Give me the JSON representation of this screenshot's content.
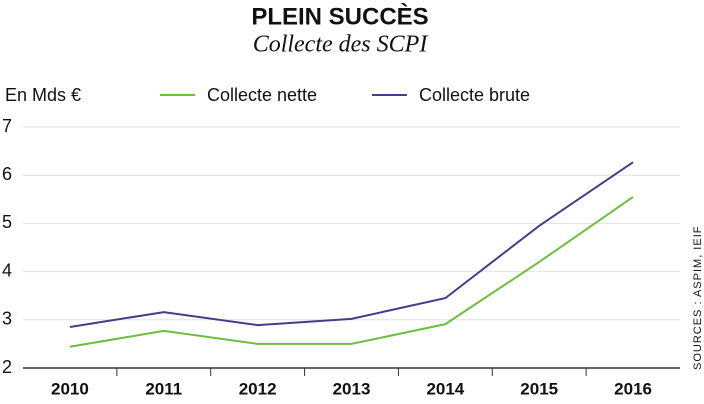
{
  "chart_data": {
    "type": "line",
    "title": "PLEIN SUCCÈS",
    "subtitle": "Collecte des SCPI",
    "y_label": "En Mds €",
    "source": "SOURCES : ASPIM, IEIF",
    "categories": [
      "2010",
      "2011",
      "2012",
      "2013",
      "2014",
      "2015",
      "2016"
    ],
    "series": [
      {
        "name": "Collecte nette",
        "color": "#6cbf3c",
        "values": [
          2.44,
          2.77,
          2.5,
          2.5,
          2.91,
          4.2,
          5.55
        ]
      },
      {
        "name": "Collecte brute",
        "color": "#4b3a8a",
        "values": [
          2.85,
          3.16,
          2.89,
          3.02,
          3.45,
          4.95,
          6.27
        ]
      }
    ],
    "ylim": [
      2,
      7
    ],
    "yticks": [
      2,
      3,
      4,
      5,
      6,
      7
    ],
    "grid": true
  }
}
